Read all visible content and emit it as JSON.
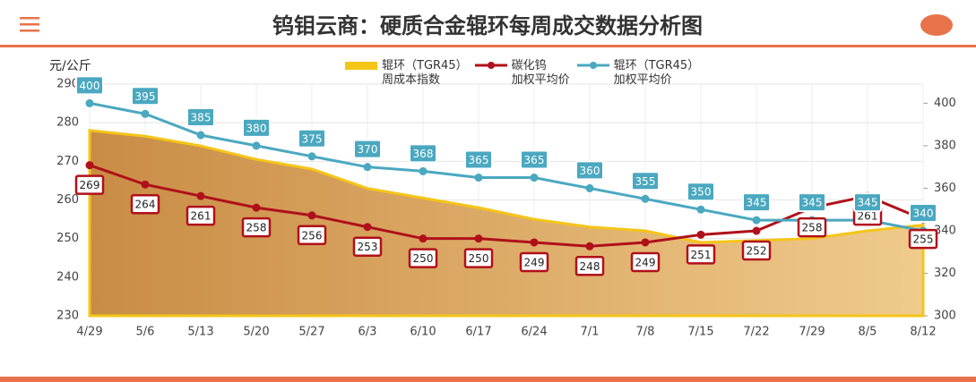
{
  "chart_data": {
    "type": "line",
    "title": "钨钼云商：硬质合金辊环每周成交数据分析图",
    "y_label": "元/公斤",
    "categories": [
      "4/29",
      "5/6",
      "5/13",
      "5/20",
      "5/27",
      "6/3",
      "6/10",
      "6/17",
      "6/24",
      "7/1",
      "7/8",
      "7/15",
      "7/22",
      "7/29",
      "8/5",
      "8/12"
    ],
    "series": [
      {
        "name": "辊环（TGR45）\n周成本指数",
        "type": "area",
        "color": "#f5c518",
        "labels": false,
        "values": [
          278,
          276.5,
          274,
          270.5,
          268,
          263,
          260.5,
          258,
          255,
          253,
          252,
          249,
          249.5,
          250,
          252,
          253.5
        ]
      },
      {
        "name": "碳化钨\n加权平均价",
        "type": "line",
        "color": "#b0101a",
        "labels": true,
        "values": [
          269,
          264,
          261,
          258,
          256,
          253,
          250,
          250,
          249,
          248,
          249,
          251,
          252,
          258,
          261,
          255
        ]
      },
      {
        "name": "辊环（TGR45）\n加权平均价",
        "type": "line",
        "color": "#4aa8c0",
        "axis": "y2",
        "labels": true,
        "values": [
          400,
          395,
          385,
          380,
          375,
          370,
          368,
          365,
          365,
          360,
          355,
          350,
          345,
          345,
          345,
          340
        ]
      }
    ],
    "ylim": [
      230,
      290
    ],
    "yticks": [
      230,
      240,
      250,
      260,
      270,
      280,
      290
    ],
    "y2lim": [
      300,
      409
    ],
    "y2ticks": [
      300,
      320,
      340,
      360,
      380,
      400
    ],
    "grid": true
  }
}
